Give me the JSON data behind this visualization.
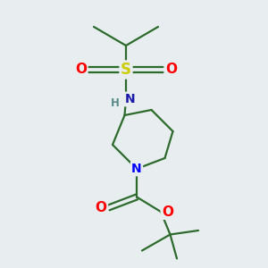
{
  "background_color": "#e8eef0",
  "bond_color": "#2d6b2d",
  "atom_colors": {
    "S": "#cccc00",
    "O": "#ff0000",
    "N_sulfonamide": "#1a1aaa",
    "N_piperidine": "#0000ff",
    "C": "#2d6b2d",
    "H": "#5a8a8a"
  },
  "figsize": [
    3.0,
    3.0
  ],
  "dpi": 100
}
